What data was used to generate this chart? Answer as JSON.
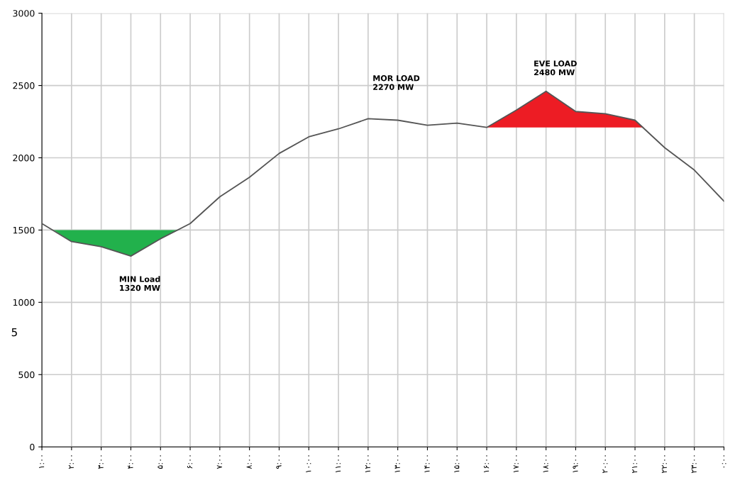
{
  "chart_data": {
    "type": "line",
    "x": [
      1,
      2,
      3,
      4,
      5,
      6,
      7,
      8,
      9,
      10,
      11,
      12,
      13,
      14,
      15,
      16,
      17,
      18,
      19,
      20,
      21,
      22,
      23,
      24
    ],
    "series": [
      {
        "color": "#555555",
        "values": [
          1545,
          1420,
          1385,
          1320,
          1440,
          1545,
          1730,
          1865,
          2030,
          2145,
          2200,
          2270,
          2260,
          2225,
          2240,
          2210,
          2330,
          2460,
          2320,
          2305,
          2260,
          2070,
          1915,
          1700
        ]
      },
      {
        "type": "area",
        "color": "#22b14c",
        "x": [
          1.4,
          2,
          3,
          4,
          5,
          5.6
        ],
        "values": [
          1500,
          1420,
          1385,
          1320,
          1440,
          1500
        ]
      },
      {
        "type": "area",
        "color": "#ed1c24",
        "x": [
          16,
          17,
          18,
          19,
          20,
          21,
          21.3
        ],
        "values": [
          2210,
          2330,
          2460,
          2320,
          2305,
          2260,
          2210
        ]
      }
    ],
    "xlim": [
      1,
      24
    ],
    "ylim": [
      0,
      3000
    ],
    "xticks": [
      {
        "value": 1,
        "label": "۱:۰۰"
      },
      {
        "value": 2,
        "label": "۲:۰۰"
      },
      {
        "value": 3,
        "label": "۳:۰۰"
      },
      {
        "value": 4,
        "label": "۴:۰۰"
      },
      {
        "value": 5,
        "label": "۵:۰۰"
      },
      {
        "value": 6,
        "label": "۶:۰۰"
      },
      {
        "value": 7,
        "label": "۷:۰۰"
      },
      {
        "value": 8,
        "label": "۸:۰۰"
      },
      {
        "value": 9,
        "label": "۹:۰۰"
      },
      {
        "value": 10,
        "label": "۱۰:۰۰"
      },
      {
        "value": 11,
        "label": "۱۱:۰۰"
      },
      {
        "value": 12,
        "label": "۱۲:۰۰"
      },
      {
        "value": 13,
        "label": "۱۳:۰۰"
      },
      {
        "value": 14,
        "label": "۱۴:۰۰"
      },
      {
        "value": 15,
        "label": "۱۵:۰۰"
      },
      {
        "value": 16,
        "label": "۱۶:۰۰"
      },
      {
        "value": 17,
        "label": "۱۷:۰۰"
      },
      {
        "value": 18,
        "label": "۱۸:۰۰"
      },
      {
        "value": 19,
        "label": "۱۹:۰۰"
      },
      {
        "value": 20,
        "label": "۲۰:۰۰"
      },
      {
        "value": 21,
        "label": "۲۱:۰۰"
      },
      {
        "value": 22,
        "label": "۲۲:۰۰"
      },
      {
        "value": 23,
        "label": "۲۳:۰۰"
      },
      {
        "value": 24,
        "label": "۰:۰۰"
      }
    ],
    "yticks": [
      0,
      500,
      1000,
      1500,
      2000,
      2500,
      3000
    ],
    "grid": true,
    "marker": "none",
    "line_style": "solid",
    "annotations": [
      "MIN Load\n1320 MW",
      "MOR LOAD\n2270 MW",
      "EVE LOAD\n2480 MW",
      "5"
    ]
  }
}
